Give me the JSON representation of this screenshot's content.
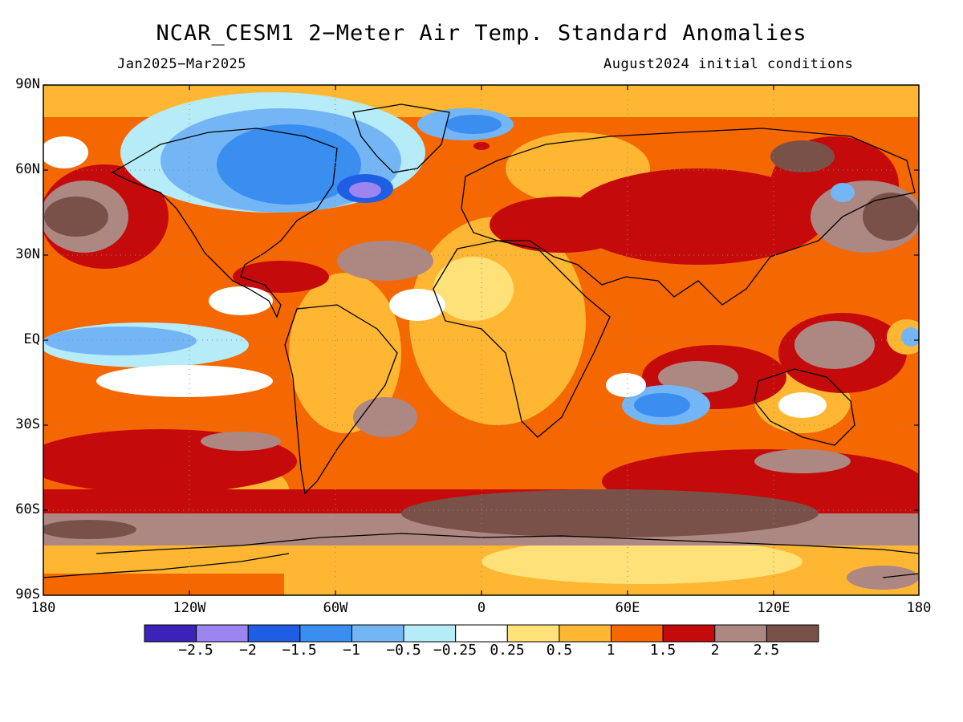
{
  "title": "NCAR_CESM1 2−Meter Air Temp. Standard Anomalies",
  "period": "Jan2025−Mar2025",
  "init": "August2024 initial conditions",
  "lat_labels": [
    "90N",
    "60N",
    "30N",
    "EQ",
    "30S",
    "60S",
    "90S"
  ],
  "lon_labels": [
    "180",
    "120W",
    "60W",
    "0",
    "60E",
    "120E",
    "180"
  ],
  "colorbar": {
    "colors": [
      "#3c22b8",
      "#9c85f0",
      "#1f5ee3",
      "#3a8ef0",
      "#74b6f5",
      "#b6ebf8",
      "#ffffff",
      "#ffe17a",
      "#ffb733",
      "#f56700",
      "#c40a0a",
      "#ad8781",
      "#7a5148"
    ],
    "labels": [
      "−2.5",
      "−2",
      "−1.5",
      "−1",
      "−0.5",
      "−0.25",
      "0.25",
      "0.5",
      "1",
      "1.5",
      "2",
      "2.5"
    ]
  }
}
